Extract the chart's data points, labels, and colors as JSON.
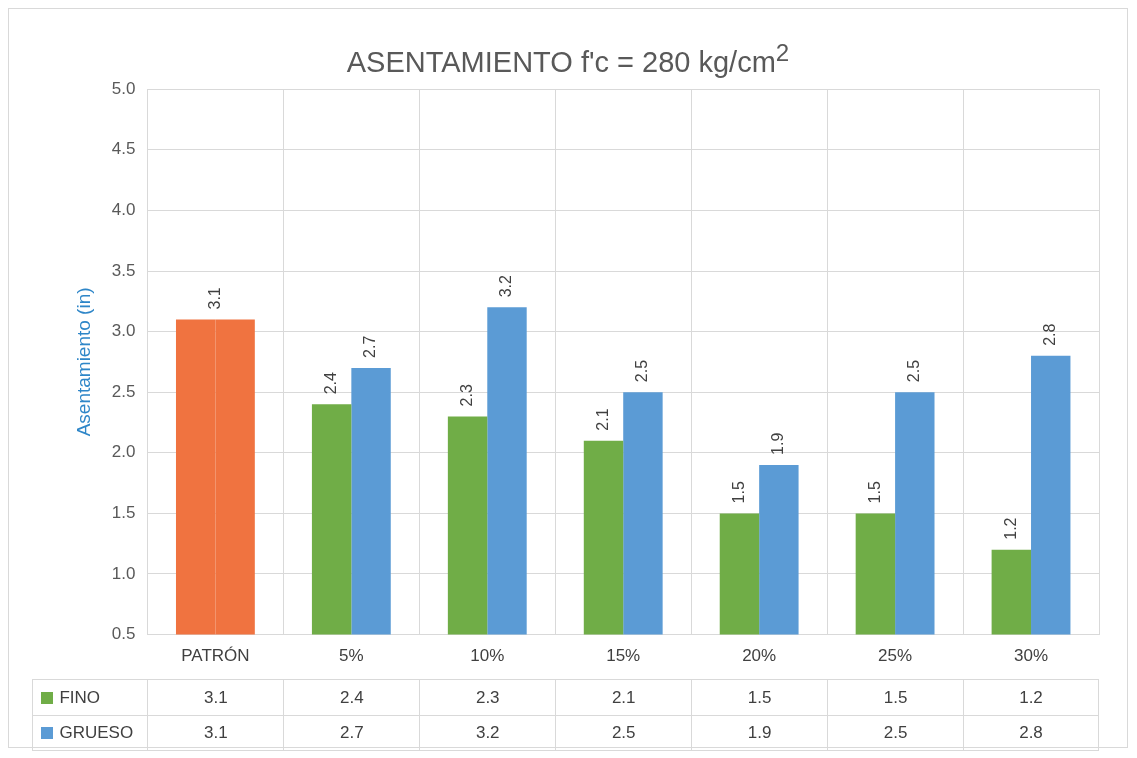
{
  "chart_data": {
    "type": "bar",
    "title": "ASENTAMIENTO f'c = 280 kg/cm$^{2}$",
    "ylabel": "Asentamiento (in)",
    "categories": [
      "PATRÓN",
      "5%",
      "10%",
      "15%",
      "20%",
      "25%",
      "30%"
    ],
    "series": [
      {
        "name": "FINO",
        "color": "#70ad47",
        "colors": [
          "#f07340",
          "#70ad47",
          "#70ad47",
          "#70ad47",
          "#70ad47",
          "#70ad47",
          "#70ad47"
        ],
        "values": [
          3.1,
          2.4,
          2.3,
          2.1,
          1.5,
          1.5,
          1.2
        ],
        "value_labels": [
          "3.1",
          "2.4",
          "2.3",
          "2.1",
          "1.5",
          "1.5",
          "1.2"
        ]
      },
      {
        "name": "GRUESO",
        "color": "#5b9bd5",
        "colors": [
          "#f07340",
          "#5b9bd5",
          "#5b9bd5",
          "#5b9bd5",
          "#5b9bd5",
          "#5b9bd5",
          "#5b9bd5"
        ],
        "values": [
          3.1,
          2.7,
          3.2,
          2.5,
          1.9,
          2.5,
          2.8
        ],
        "value_labels": [
          "3.1",
          "2.7",
          "3.2",
          "2.5",
          "1.9",
          "2.5",
          "2.8"
        ]
      }
    ],
    "ylim": [
      0.5,
      5.0
    ],
    "yticks": [
      0.5,
      {
        "value": 1,
        "label": "1.0"
      },
      1.5,
      {
        "value": 2,
        "label": "2.0"
      },
      2.5,
      {
        "value": 3,
        "label": "3.0"
      },
      3.5,
      {
        "value": 4,
        "label": "4.0"
      },
      4.5,
      {
        "value": 5,
        "label": "5.0"
      }
    ],
    "grid": true,
    "legend": "bottom",
    "annotations": [
      {
        "text": "3.1",
        "x": "PATRÓN",
        "y": 3.1
      },
      {
        "text": "2.4",
        "x": "5%",
        "y": 2.4
      },
      {
        "text": "2.7",
        "x": "5%",
        "y": 2.7
      },
      {
        "text": "2.3",
        "x": "10%",
        "y": 2.3
      },
      {
        "text": "3.2",
        "x": "10%",
        "y": 3.2
      },
      {
        "text": "2.1",
        "x": "15%",
        "y": 2.1
      },
      {
        "text": "2.5",
        "x": "15%",
        "y": 2.5
      },
      {
        "text": "1.5",
        "x": "20%",
        "y": 1.5
      },
      {
        "text": "1.9",
        "x": "20%",
        "y": 1.9
      },
      {
        "text": "1.5",
        "x": "25%",
        "y": 1.5
      },
      {
        "text": "2.5",
        "x": "25%",
        "y": 2.5
      },
      {
        "text": "1.2",
        "x": "30%",
        "y": 1.2
      },
      {
        "text": "2.8",
        "x": "30%",
        "y": 2.8
      }
    ]
  }
}
